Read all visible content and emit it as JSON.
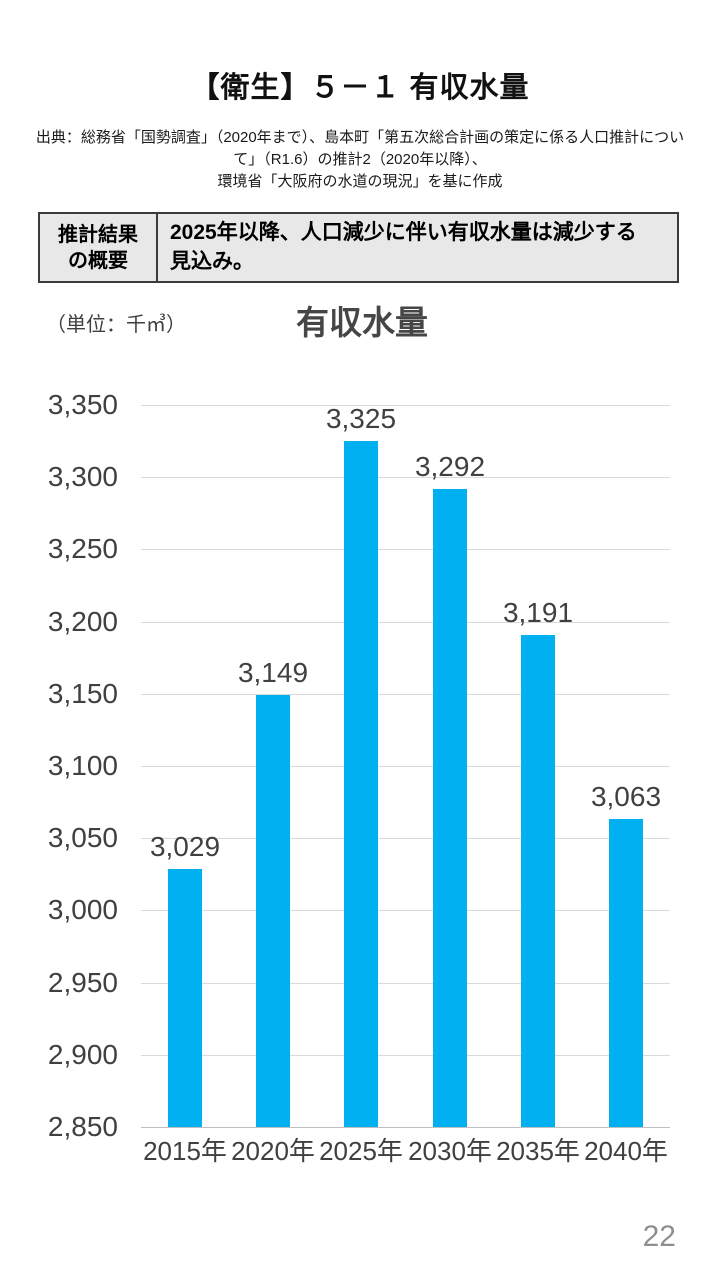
{
  "page": {
    "title": "【衛生】５－１ 有収水量",
    "source_lines": [
      "出典：総務省「国勢調査」（2020年まで）、島本町「第五次総合計画の策定に係る人口推計につい",
      "て」（R1.6）の推計2（2020年以降）、",
      "環境省「大阪府の水道の現況」を基に作成"
    ],
    "page_number": "22"
  },
  "summary": {
    "header_lines": [
      "推計結果",
      "の概要"
    ],
    "body_lines": [
      "2025年以降、人口減少に伴い有収水量は減少する",
      "見込み。"
    ]
  },
  "chart_data": {
    "type": "bar",
    "title": "有収水量",
    "unit_label": "（単位：千㎥）",
    "categories": [
      "2015年",
      "2020年",
      "2025年",
      "2030年",
      "2035年",
      "2040年"
    ],
    "values": [
      3029,
      3149,
      3325,
      3292,
      3191,
      3063
    ],
    "value_labels": [
      "3,029",
      "3,149",
      "3,325",
      "3,292",
      "3,191",
      "3,063"
    ],
    "ylim": [
      2850,
      3350
    ],
    "ytick_step": 50,
    "ylabel": "",
    "xlabel": "",
    "grid": true,
    "legend": false,
    "bar_color": "#00B0F0",
    "grid_color": "#d9d9d9",
    "axis_text_color": "#404040"
  }
}
